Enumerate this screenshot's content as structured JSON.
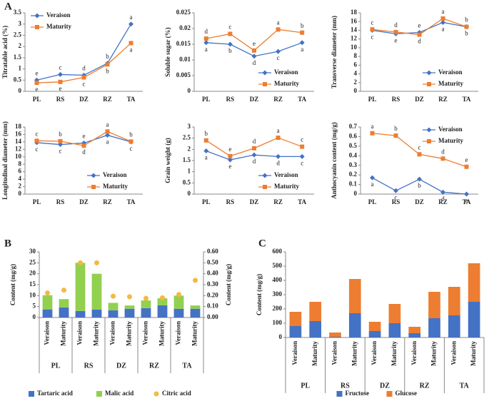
{
  "panel_labels": [
    "A",
    "B",
    "C"
  ],
  "chart_data": [
    {
      "type": "line",
      "ylabel": "Titratable acid (%)",
      "categories": [
        "PL",
        "RS",
        "DZ",
        "RZ",
        "TA"
      ],
      "ylim": [
        0,
        3.5
      ],
      "yticks": [
        0,
        0.5,
        1,
        1.5,
        2,
        2.5,
        3,
        3.5
      ],
      "legend": "upper left",
      "series": [
        {
          "name": "Veraison",
          "color": "#4472c4",
          "marker": "diamond",
          "values": [
            0.5,
            0.75,
            0.72,
            1.25,
            3.0
          ],
          "annotations": [
            "e",
            "c",
            "d",
            "b",
            "a"
          ]
        },
        {
          "name": "Maturity",
          "color": "#ed7d31",
          "marker": "square",
          "values": [
            0.38,
            0.42,
            0.62,
            1.2,
            2.15
          ],
          "annotations": [
            "e",
            "e",
            "c",
            "b",
            "a"
          ]
        }
      ]
    },
    {
      "type": "line",
      "ylabel": "Soluble sugar (%)",
      "categories": [
        "PL",
        "RS",
        "DZ",
        "RZ",
        "TA"
      ],
      "ylim": [
        0,
        0.025
      ],
      "yticks": [
        0,
        0.005,
        0.01,
        0.015,
        0.02,
        0.025
      ],
      "legend": "lower right",
      "series": [
        {
          "name": "Veraison",
          "color": "#4472c4",
          "marker": "diamond",
          "values": [
            0.0155,
            0.015,
            0.0112,
            0.0127,
            0.0155
          ],
          "annotations": [
            "a",
            "b",
            "d",
            "c",
            "a"
          ]
        },
        {
          "name": "Maturity",
          "color": "#ed7d31",
          "marker": "square",
          "values": [
            0.0168,
            0.0183,
            0.013,
            0.0197,
            0.0187
          ],
          "annotations": [
            "d",
            "c",
            "e",
            "a",
            "b"
          ]
        }
      ]
    },
    {
      "type": "line",
      "ylabel": "Transverse diameter (mm)",
      "categories": [
        "PL",
        "RS",
        "DZ",
        "RZ",
        "TA"
      ],
      "ylim": [
        0,
        18
      ],
      "yticks": [
        0,
        2,
        4,
        6,
        8,
        10,
        12,
        14,
        16,
        18
      ],
      "legend": "lower right",
      "series": [
        {
          "name": "Veraison",
          "color": "#4472c4",
          "marker": "diamond",
          "values": [
            14.0,
            13.2,
            13.5,
            15.8,
            14.8
          ],
          "annotations": [
            "c",
            "e",
            "e",
            "a",
            "b"
          ]
        },
        {
          "name": "Maturity",
          "color": "#ed7d31",
          "marker": "square",
          "values": [
            14.2,
            13.6,
            13.0,
            16.7,
            14.8
          ],
          "annotations": [
            "c",
            "d",
            "d",
            "a",
            "b"
          ]
        }
      ]
    },
    {
      "type": "line",
      "ylabel": "Longitudinal diameter (mm)",
      "categories": [
        "PL",
        "RS",
        "DZ",
        "RZ",
        "TA"
      ],
      "ylim": [
        0,
        18
      ],
      "yticks": [
        0,
        2,
        4,
        6,
        8,
        10,
        12,
        14,
        16,
        18
      ],
      "legend": "lower right",
      "series": [
        {
          "name": "Veraison",
          "color": "#4472c4",
          "marker": "diamond",
          "values": [
            13.8,
            13.3,
            13.7,
            15.8,
            14.0
          ],
          "annotations": [
            "c",
            "c",
            "e",
            "a",
            "c"
          ]
        },
        {
          "name": "Maturity",
          "color": "#ed7d31",
          "marker": "square",
          "values": [
            14.3,
            14.2,
            13.0,
            16.8,
            14.1
          ],
          "annotations": [
            "c",
            "b",
            "d",
            "a",
            "b"
          ]
        }
      ]
    },
    {
      "type": "line",
      "ylabel": "Grain weight (g)",
      "categories": [
        "PL",
        "RS",
        "DZ",
        "RZ",
        "TA"
      ],
      "ylim": [
        0,
        3
      ],
      "yticks": [
        0,
        0.5,
        1,
        1.5,
        2,
        2.5,
        3
      ],
      "legend": "lower right",
      "series": [
        {
          "name": "Veraison",
          "color": "#4472c4",
          "marker": "diamond",
          "values": [
            1.93,
            1.53,
            1.75,
            1.68,
            1.68
          ],
          "annotations": [
            "a",
            "e",
            "d",
            "d",
            "c"
          ]
        },
        {
          "name": "Maturity",
          "color": "#ed7d31",
          "marker": "square",
          "values": [
            2.4,
            1.7,
            2.05,
            2.52,
            2.12
          ],
          "annotations": [
            "b",
            "e",
            "d",
            "a",
            "c"
          ]
        }
      ]
    },
    {
      "type": "line",
      "ylabel": "Anthocyanin content (mg/g)",
      "categories": [
        "PL",
        "RS",
        "DZ",
        "RZ",
        "TA"
      ],
      "ylim": [
        0,
        0.7
      ],
      "yticks": [
        0,
        0.1,
        0.2,
        0.3,
        0.4,
        0.5,
        0.6,
        0.7
      ],
      "legend": "upper right",
      "series": [
        {
          "name": "Veraison",
          "color": "#4472c4",
          "marker": "diamond",
          "values": [
            0.17,
            0.035,
            0.155,
            0.02,
            0.0
          ],
          "annotations": [
            "a",
            "c",
            "b",
            "d",
            "e"
          ]
        },
        {
          "name": "Maturity",
          "color": "#ed7d31",
          "marker": "square",
          "values": [
            0.635,
            0.61,
            0.415,
            0.37,
            0.285
          ],
          "annotations": [
            "a",
            "b",
            "c",
            "d",
            "e"
          ]
        }
      ]
    },
    {
      "type": "bar",
      "stacked": true,
      "ylabel": "Content (mg/g)",
      "y2label": "Content (mg/g)",
      "categories": [
        "Veraison",
        "Maturity",
        "Veraison",
        "Maturity",
        "Veraison",
        "Maturity",
        "Veraison",
        "Maturity",
        "Veraison",
        "Maturity"
      ],
      "groups": [
        "PL",
        "RS",
        "DZ",
        "RZ",
        "TA"
      ],
      "ylim": [
        0,
        30
      ],
      "yticks": [
        0,
        5,
        10,
        15,
        20,
        25,
        30
      ],
      "y2lim": [
        0,
        0.6
      ],
      "y2ticks": [
        {
          "value": 0,
          "label": "0.00"
        },
        {
          "value": 0.1,
          "label": "0.10"
        },
        {
          "value": 0.2,
          "label": "0.20"
        },
        {
          "value": 0.3,
          "label": "0.30"
        },
        {
          "value": 0.4,
          "label": "0.40"
        },
        {
          "value": 0.5,
          "label": "0.50"
        },
        {
          "value": 0.6,
          "label": "0.60"
        }
      ],
      "legend": "lower center",
      "series": [
        {
          "name": "Tartaric acid",
          "color": "#4472c4",
          "values": [
            3.7,
            4.6,
            3.0,
            3.6,
            3.3,
            4.0,
            4.3,
            5.6,
            4.0,
            4.0
          ]
        },
        {
          "name": "Malic acid",
          "color": "#92d050",
          "values": [
            6.5,
            3.8,
            22.0,
            16.4,
            3.4,
            1.5,
            3.5,
            3.2,
            6.0,
            1.5
          ]
        },
        {
          "name": "Citric acid",
          "color": "#f4b942",
          "type": "scatter",
          "axis": "y2",
          "values": [
            0.225,
            0.25,
            0.5,
            0.5,
            0.195,
            0.19,
            0.175,
            0.18,
            0.21,
            0.34
          ]
        }
      ]
    },
    {
      "type": "bar",
      "stacked": true,
      "ylabel": "Content (mg/g)",
      "categories": [
        "Veraison",
        "Maturity",
        "Veraison",
        "Maturity",
        "Veraison",
        "Maturity",
        "Veraison",
        "Maturity",
        "Veraison",
        "Maturity"
      ],
      "groups": [
        "PL",
        "RS",
        "DZ",
        "RZ",
        "TA"
      ],
      "ylim": [
        0,
        600
      ],
      "yticks": [
        0,
        100,
        200,
        300,
        400,
        500,
        600
      ],
      "legend": "lower center",
      "series": [
        {
          "name": "Fructose",
          "color": "#4472c4",
          "values": [
            80,
            115,
            5,
            170,
            45,
            100,
            30,
            135,
            155,
            250
          ]
        },
        {
          "name": "Glucose",
          "color": "#ed7d31",
          "values": [
            100,
            135,
            30,
            240,
            65,
            135,
            45,
            185,
            200,
            270
          ]
        }
      ]
    }
  ]
}
